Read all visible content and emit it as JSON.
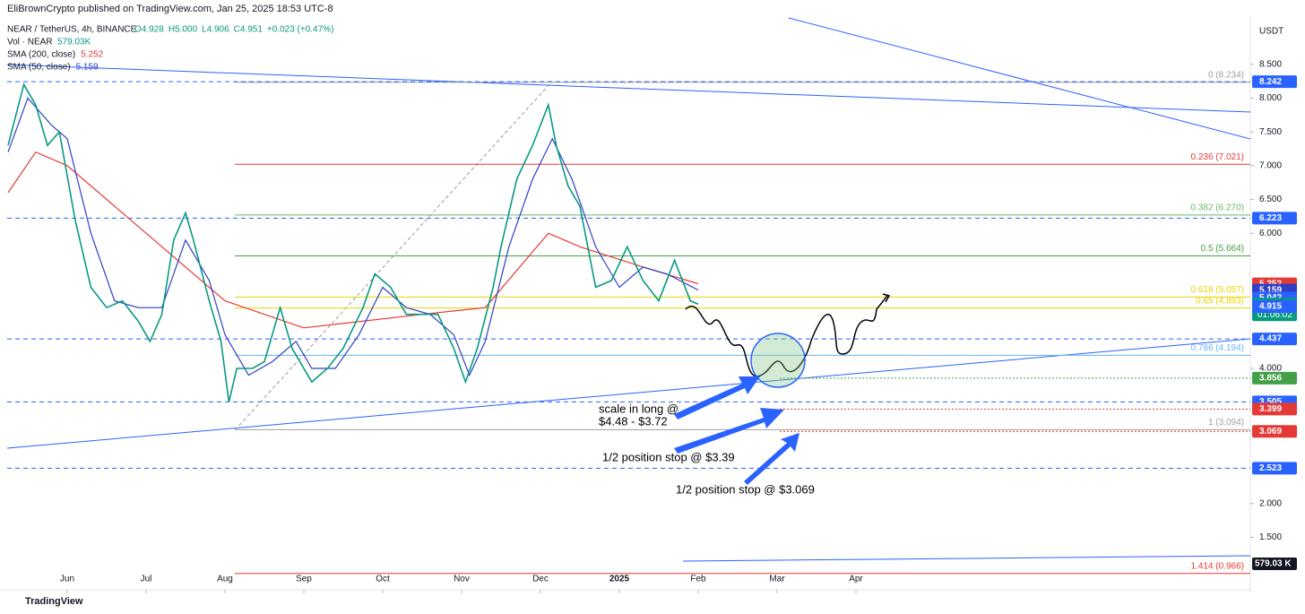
{
  "header": "EliBrownCrypto published on TradingView.com, Jan 25, 2025 18:53 UTC-8",
  "chart_data": {
    "type": "line",
    "title": "NEAR / TetherUS, 4h, BINANCE",
    "ohlc": [
      "O4.928",
      "H5.000",
      "L4.906",
      "C4.951",
      "+0.023 (+0.47%)"
    ],
    "volume_label": "Vol · NEAR",
    "volume_value": "579.03K",
    "currency": "USDT",
    "brand": "TradingView",
    "xlim": [
      -0.761,
      15.0
    ],
    "ylim": [
      0.963,
      9.186
    ],
    "xticks": [
      {
        "value": 0,
        "label": "Jun"
      },
      {
        "value": 1,
        "label": "Jul"
      },
      {
        "value": 2,
        "label": "Aug"
      },
      {
        "value": 3,
        "label": "Sep"
      },
      {
        "value": 4,
        "label": "Oct"
      },
      {
        "value": 5,
        "label": "Nov"
      },
      {
        "value": 6,
        "label": "Dec"
      },
      {
        "value": 7,
        "label": "2025"
      },
      {
        "value": 8,
        "label": "Feb"
      },
      {
        "value": 9,
        "label": "Mar"
      },
      {
        "value": 10,
        "label": "Apr"
      }
    ],
    "yticks": [
      {
        "value": 8.5,
        "label": "8.500"
      },
      {
        "value": 8.0,
        "label": "8.000"
      },
      {
        "value": 7.5,
        "label": "7.500"
      },
      {
        "value": 7.0,
        "label": "7.000"
      },
      {
        "value": 6.5,
        "label": "6.500"
      },
      {
        "value": 6.0,
        "label": "6.000"
      },
      {
        "value": 4.0,
        "label": "4.000"
      },
      {
        "value": 2.0,
        "label": "2.000"
      },
      {
        "value": 1.5,
        "label": "1.500"
      }
    ],
    "price": {
      "color": "#089981",
      "x": [
        -0.75,
        -0.55,
        -0.4,
        -0.25,
        -0.1,
        0.1,
        0.3,
        0.5,
        0.7,
        0.9,
        1.05,
        1.2,
        1.35,
        1.5,
        1.6,
        1.8,
        1.95,
        2.05,
        2.15,
        2.35,
        2.5,
        2.7,
        2.85,
        3.1,
        3.3,
        3.5,
        3.75,
        3.9,
        4.1,
        4.3,
        4.5,
        4.7,
        4.9,
        5.05,
        5.2,
        5.4,
        5.5,
        5.7,
        5.9,
        6.1,
        6.2,
        6.35,
        6.5,
        6.7,
        6.9,
        7.1,
        7.3,
        7.5,
        7.7,
        7.9,
        8.0
      ],
      "values": [
        7.3,
        8.2,
        7.9,
        7.3,
        7.5,
        6.2,
        5.2,
        4.9,
        5.0,
        4.7,
        4.4,
        4.8,
        5.9,
        6.3,
        5.9,
        5.0,
        4.4,
        3.5,
        4.0,
        4.0,
        4.1,
        4.9,
        4.3,
        3.8,
        4.0,
        4.3,
        4.9,
        5.4,
        5.2,
        4.8,
        4.8,
        4.8,
        4.3,
        3.8,
        4.3,
        5.2,
        5.8,
        6.8,
        7.3,
        7.9,
        7.3,
        6.7,
        6.4,
        5.2,
        5.3,
        5.8,
        5.3,
        5.0,
        5.6,
        5.0,
        4.95
      ]
    },
    "series": [
      {
        "name": "SMA (200, close)",
        "color": "#e53935",
        "last": 5.252,
        "x": [
          -0.75,
          -0.4,
          0,
          1,
          2,
          3,
          4.5,
          5.3,
          6.1,
          6.5,
          7.3,
          8.0
        ],
        "values": [
          6.6,
          7.2,
          7.0,
          6.0,
          5.0,
          4.6,
          4.8,
          4.9,
          6.0,
          5.8,
          5.5,
          5.252
        ]
      },
      {
        "name": "SMA (50, close)",
        "color": "#2f3fc8",
        "last": 5.159,
        "x": [
          -0.75,
          -0.5,
          -0.2,
          0,
          0.3,
          0.6,
          0.9,
          1.2,
          1.5,
          1.8,
          2.0,
          2.3,
          2.6,
          2.9,
          3.1,
          3.4,
          3.7,
          4.0,
          4.3,
          4.6,
          4.9,
          5.1,
          5.3,
          5.6,
          5.9,
          6.15,
          6.4,
          6.7,
          7.0,
          7.3,
          7.6,
          8.0
        ],
        "values": [
          7.2,
          8.0,
          7.6,
          7.4,
          6.0,
          5.0,
          4.9,
          4.9,
          5.9,
          5.3,
          4.5,
          3.9,
          4.1,
          4.4,
          4.0,
          4.0,
          4.5,
          5.2,
          4.9,
          4.8,
          4.5,
          3.9,
          4.4,
          5.8,
          6.8,
          7.4,
          6.8,
          5.8,
          5.2,
          5.5,
          5.4,
          5.159
        ]
      }
    ],
    "fib": [
      {
        "value": 8.234,
        "label": "0 (8.234)",
        "color": "#9e9e9e"
      },
      {
        "value": 7.021,
        "label": "0.236 (7.021)",
        "color": "#e53935"
      },
      {
        "value": 6.27,
        "label": "0.382 (6.270)",
        "color": "#66bb6a"
      },
      {
        "value": 5.664,
        "label": "0.5 (5.664)",
        "color": "#43a047"
      },
      {
        "value": 5.057,
        "label": "0.618 (5.057)",
        "color": "#e6d600"
      },
      {
        "value": 4.893,
        "label": "0.65 (4.893)",
        "color": "#e6d600"
      },
      {
        "value": 4.194,
        "label": "0.786 (4.194)",
        "color": "#64b5f6"
      },
      {
        "value": 3.094,
        "label": "1 (3.094)",
        "color": "#9e9e9e"
      },
      {
        "value": 0.966,
        "label": "1.414 (0.966)",
        "color": "#e53935"
      }
    ],
    "badges": [
      {
        "value": 8.242,
        "color": "#2962ff",
        "line": "dashed"
      },
      {
        "value": 6.223,
        "color": "#2962ff",
        "line": "dashed"
      },
      {
        "value": 5.252,
        "color": "#e53935"
      },
      {
        "value": 5.159,
        "color": "#2f3fc8"
      },
      {
        "value": 5.042,
        "color": "#2962ff"
      },
      {
        "value": 4.951,
        "color": "#089981",
        "countdown": "01:06:02"
      },
      {
        "value": 4.915,
        "color": "#2962ff"
      },
      {
        "value": 4.437,
        "color": "#2962ff",
        "line": "dashed"
      },
      {
        "value": 3.856,
        "color": "#43a047",
        "line": "dotted"
      },
      {
        "value": 3.505,
        "color": "#2962ff",
        "line": "dashed"
      },
      {
        "value": 3.399,
        "color": "#e53935",
        "line": "dotted"
      },
      {
        "value": 3.069,
        "color": "#e53935",
        "line": "dotted"
      },
      {
        "value": 2.523,
        "color": "#2962ff",
        "line": "dashed"
      }
    ],
    "volume_badge": "579.03 K",
    "annotations": [
      [
        "scale in long @",
        "$4.48 - $3.72"
      ],
      [
        "1/2 position stop @ $3.39"
      ],
      [
        "1/2 position stop @ $3.069"
      ]
    ]
  }
}
